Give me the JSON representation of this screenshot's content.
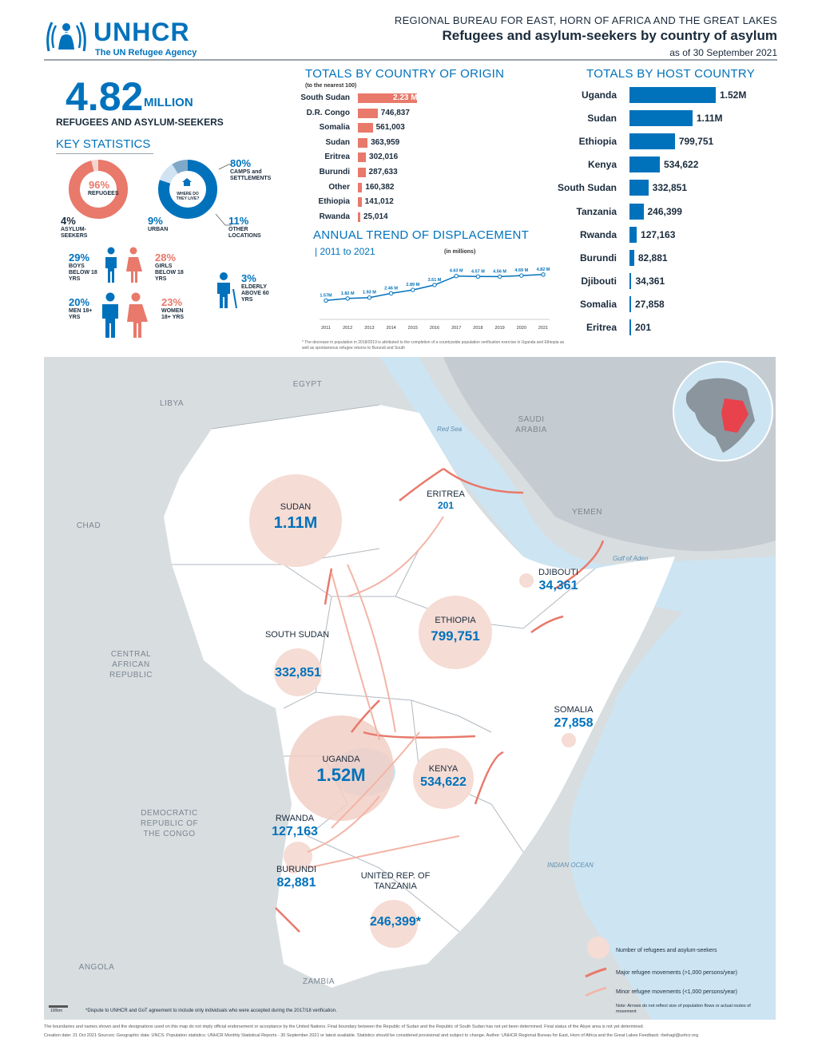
{
  "header": {
    "org_name": "UNHCR",
    "org_tagline": "The UN Refugee Agency",
    "bureau": "REGIONAL BUREAU FOR EAST, HORN OF AFRICA AND THE GREAT LAKES",
    "title": "Refugees and asylum-seekers by country of asylum",
    "date": "as of 30 September 2021"
  },
  "summary": {
    "total": "4.82",
    "unit": "MILLION",
    "label": "REFUGEES AND ASYLUM-SEEKERS"
  },
  "key_stats": {
    "title": "KEY STATISTICS",
    "refugees_pct": "96%",
    "refugees_label": "REFUGEES",
    "asylum_pct": "4%",
    "asylum_label": "ASYLUM-SEEKERS",
    "camps_pct": "80%",
    "camps_label": "CAMPS and SETTLEMENTS",
    "where_label": "WHERE DO THEY LIVE?",
    "urban_pct": "9%",
    "urban_label": "URBAN",
    "other_pct": "11%",
    "other_label": "OTHER LOCATIONS",
    "boys_pct": "29%",
    "boys_label": "BOYS BELOW 18 YRS",
    "girls_pct": "28%",
    "girls_label": "GIRLS BELOW 18 YRS",
    "elderly_pct": "3%",
    "elderly_label": "ELDERLY ABOVE 60 YRS",
    "men_pct": "20%",
    "men_label": "MEN 18+ YRS",
    "women_pct": "23%",
    "women_label": "WOMEN 18+ YRS",
    "refugees_fraction": 0.96,
    "camps_fraction": 0.8,
    "urban_fraction": 0.09,
    "other_fraction": 0.11
  },
  "origin": {
    "title": "TOTALS BY COUNTRY OF ORIGIN",
    "note": "(to the nearest 100)",
    "rows": [
      {
        "label": "South Sudan",
        "value": 2230000,
        "text": "2.23 M"
      },
      {
        "label": "D.R. Congo",
        "value": 746837,
        "text": "746,837"
      },
      {
        "label": "Somalia",
        "value": 561003,
        "text": "561,003"
      },
      {
        "label": "Sudan",
        "value": 363959,
        "text": "363,959"
      },
      {
        "label": "Eritrea",
        "value": 302016,
        "text": "302,016"
      },
      {
        "label": "Burundi",
        "value": 287633,
        "text": "287,633"
      },
      {
        "label": "Other",
        "value": 160382,
        "text": "160,382"
      },
      {
        "label": "Ethiopia",
        "value": 141012,
        "text": "141,012"
      },
      {
        "label": "Rwanda",
        "value": 25014,
        "text": "25,014"
      }
    ]
  },
  "host": {
    "title": "TOTALS BY HOST COUNTRY",
    "rows": [
      {
        "label": "Uganda",
        "value": 1520000,
        "text": "1.52M"
      },
      {
        "label": "Sudan",
        "value": 1110000,
        "text": "1.11M"
      },
      {
        "label": "Ethiopia",
        "value": 799751,
        "text": "799,751"
      },
      {
        "label": "Kenya",
        "value": 534622,
        "text": "534,622"
      },
      {
        "label": "South Sudan",
        "value": 332851,
        "text": "332,851"
      },
      {
        "label": "Tanzania",
        "value": 246399,
        "text": "246,399"
      },
      {
        "label": "Rwanda",
        "value": 127163,
        "text": "127,163"
      },
      {
        "label": "Burundi",
        "value": 82881,
        "text": "82,881"
      },
      {
        "label": "Djibouti",
        "value": 34361,
        "text": "34,361"
      },
      {
        "label": "Somalia",
        "value": 27858,
        "text": "27,858"
      },
      {
        "label": "Eritrea",
        "value": 201,
        "text": "201"
      }
    ]
  },
  "chart_data": {
    "type": "line",
    "title": "ANNUAL TREND OF DISPLACEMENT",
    "subtitle": "| 2011 to 2021",
    "units": "(in millions)",
    "x": [
      "2011",
      "2012",
      "2013",
      "2014",
      "2015",
      "2016",
      "2017",
      "2018",
      "2019",
      "2020",
      "2021"
    ],
    "values": [
      1.57,
      1.82,
      1.93,
      2.46,
      2.89,
      3.51,
      4.63,
      4.57,
      4.56,
      4.69,
      4.82
    ],
    "labels": [
      "1.57M",
      "1.82 M",
      "1.93 M",
      "2.46 M",
      "2.89 M",
      "3.51 M",
      "4.63 M",
      "4.57 M",
      "4.56 M",
      "4.69 M",
      "4.82 M"
    ],
    "note": "* The decrease in population in 2018/2019 is attributed to the completion of a countrywide population verification exercise in Uganda and Ethiopia as well as spontaneous refugee returns to Burundi and South"
  },
  "map": {
    "countries": {
      "egypt": "EGYPT",
      "libya": "LIBYA",
      "chad": "CHAD",
      "saudi": "SAUDI ARABIA",
      "yemen": "YEMEN",
      "car": "CENTRAL AFRICAN REPUBLIC",
      "drc": "DEMOCRATIC REPUBLIC OF THE CONGO",
      "angola": "ANGOLA",
      "zambia": "ZAMBIA"
    },
    "seas": {
      "red_sea": "Red Sea",
      "gulf_aden": "Gulf of Aden",
      "indian_ocean": "INDIAN OCEAN"
    },
    "hosts": {
      "sudan": {
        "name": "SUDAN",
        "value": "1.11M"
      },
      "eritrea": {
        "name": "ERITREA",
        "value": "201"
      },
      "djibouti": {
        "name": "DJIBOUTI",
        "value": "34,361"
      },
      "ethiopia": {
        "name": "ETHIOPIA",
        "value": "799,751"
      },
      "south_sudan": {
        "name": "SOUTH SUDAN",
        "value": "332,851"
      },
      "somalia": {
        "name": "SOMALIA",
        "value": "27,858"
      },
      "uganda": {
        "name": "UGANDA",
        "value": "1.52M"
      },
      "kenya": {
        "name": "KENYA",
        "value": "534,622"
      },
      "rwanda": {
        "name": "RWANDA",
        "value": "127,163"
      },
      "burundi": {
        "name": "BURUNDI",
        "value": "82,881"
      },
      "tanzania": {
        "name": "UNITED REP. OF TANZANIA",
        "value": "246,399*"
      }
    },
    "legend": {
      "circle": "Number of refugees and asylum-seekers",
      "major": "Major refugee movements (>1,000 persons/year)",
      "minor": "Minor refugee movements (<1,000 persons/year)",
      "note": "Note: Arrows do not reflect size of population flows or actual routes of movement"
    },
    "scale": "100km",
    "footnote": "*Dispute to UNHCR and GoT agreement to include only individuals who were accepted during the 2017/18 verification."
  },
  "footer": {
    "disclaimer": "The boundaries and names shown and the designations used on this map do not imply official endorsement or acceptance by the United Nations. Final boundary between the Republic of Sudan and the Republic of South Sudan has not yet been determined. Final status of the Abyei area is not yet determined.",
    "credits": "Creation date: 21 Oct 2021    Sources: Geographic data: UNCS. Population statistics: UNHCR Monthly Statistical Reports - 30 September 2021 or latest available. Statistics should be considered provisional and subject to change.    Author: UNHCR Regional Bureau for East, Horn of Africa and the Great Lakes    Feedback: rbehagl@unhcr.org"
  }
}
